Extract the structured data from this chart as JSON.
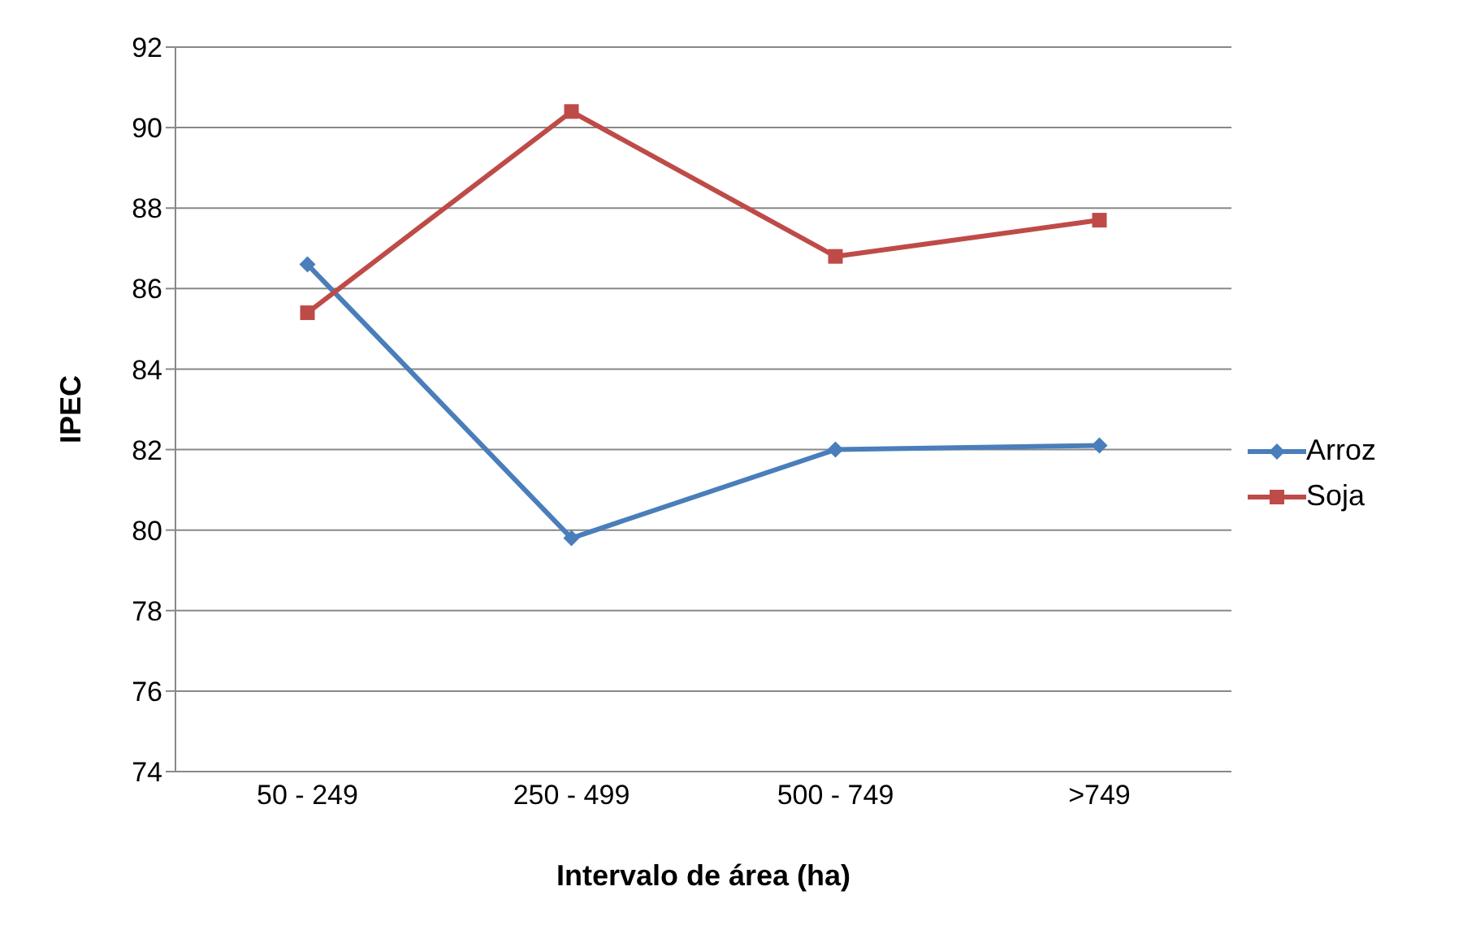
{
  "chart_data": {
    "type": "line",
    "xlabel": "Intervalo de área (ha)",
    "ylabel": "IPEC",
    "categories": [
      "50 - 249",
      "250 - 499",
      "500 - 749",
      ">749"
    ],
    "series": [
      {
        "name": "Arroz",
        "color": "#4a7ebb",
        "marker": "diamond",
        "values": [
          86.6,
          79.8,
          82.0,
          82.1
        ]
      },
      {
        "name": "Soja",
        "color": "#be4b48",
        "marker": "square",
        "values": [
          85.4,
          90.4,
          86.8,
          87.7
        ]
      }
    ],
    "ylim": [
      74,
      92
    ],
    "yticks": [
      74,
      76,
      78,
      80,
      82,
      84,
      86,
      88,
      90,
      92
    ],
    "grid": "y",
    "legend": "right"
  }
}
